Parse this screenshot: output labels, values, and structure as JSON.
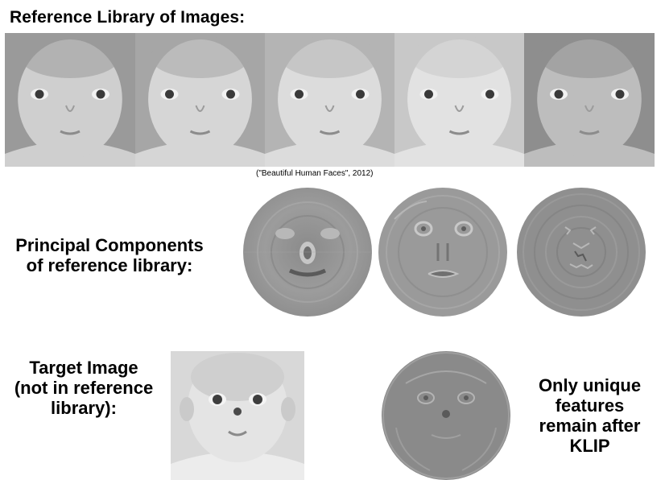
{
  "header": {
    "title": "Reference Library of Images:"
  },
  "reference_library": {
    "images": [
      {
        "name": "baby-face-1",
        "tone": "#9a9a9a",
        "skin": "#cfcfcf"
      },
      {
        "name": "baby-face-2",
        "tone": "#a6a6a6",
        "skin": "#d6d6d6"
      },
      {
        "name": "baby-face-3",
        "tone": "#b4b4b4",
        "skin": "#dcdcdc"
      },
      {
        "name": "baby-face-4",
        "tone": "#c8c8c8",
        "skin": "#e2e2e2"
      },
      {
        "name": "baby-face-5",
        "tone": "#8e8e8e",
        "skin": "#bdbdbd"
      }
    ],
    "caption": "(\"Beautiful Human Faces\", 2012)"
  },
  "principal_components": {
    "label_line1": "Principal Components",
    "label_line2": "of reference library:",
    "count": 3
  },
  "target": {
    "label_line1": "Target Image",
    "label_line2": "(not in reference",
    "label_line3": "library):"
  },
  "residual": {
    "label_line1": "Only unique",
    "label_line2": "features",
    "label_line3": "remain after",
    "label_line4": "KLIP"
  }
}
